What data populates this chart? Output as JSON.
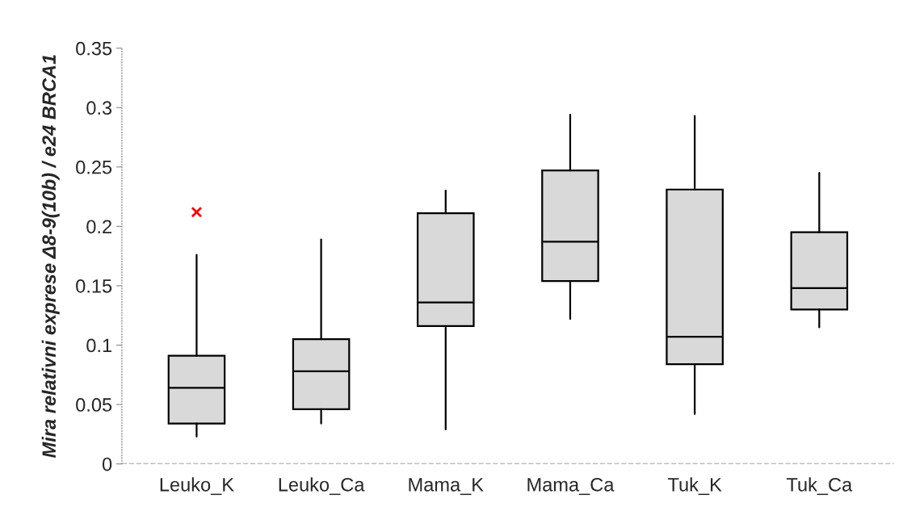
{
  "chart_data": {
    "type": "box",
    "ylabel": "Mira relativni exprese Δ8-9(10b) / e24 BRCA1",
    "categories": [
      "Leuko_K",
      "Leuko_Ca",
      "Mama_K",
      "Mama_Ca",
      "Tuk_K",
      "Tuk_Ca"
    ],
    "color": "#d9d9d9",
    "boxes": [
      {
        "low": 0.023,
        "q1": 0.034,
        "median": 0.064,
        "q3": 0.091,
        "high": 0.176,
        "outliers": [
          0.212
        ]
      },
      {
        "low": 0.034,
        "q1": 0.046,
        "median": 0.078,
        "q3": 0.105,
        "high": 0.189
      },
      {
        "low": 0.029,
        "q1": 0.116,
        "median": 0.136,
        "q3": 0.211,
        "high": 0.23
      },
      {
        "low": 0.122,
        "q1": 0.154,
        "median": 0.187,
        "q3": 0.247,
        "high": 0.294
      },
      {
        "low": 0.042,
        "q1": 0.084,
        "median": 0.107,
        "q3": 0.231,
        "high": 0.293
      },
      {
        "low": 0.115,
        "q1": 0.13,
        "median": 0.148,
        "q3": 0.195,
        "high": 0.245
      }
    ],
    "ylim": [
      0,
      0.35
    ],
    "yticks": [
      0,
      0.05,
      0.1,
      0.15,
      0.2,
      0.25,
      0.3,
      0.35
    ],
    "ref_lines": [
      {
        "axis": "y",
        "value": 0,
        "color": "#808080",
        "line_style": "dashed"
      }
    ],
    "grid": false
  }
}
